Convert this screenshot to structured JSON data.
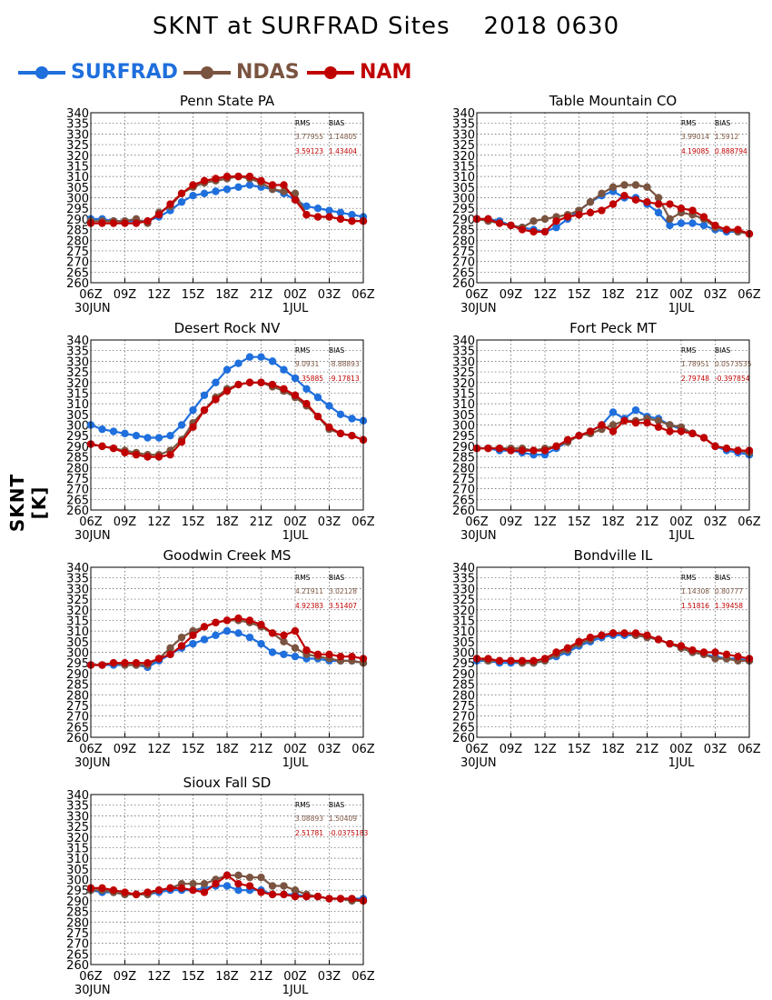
{
  "title": "SKNT at SURFRAD Sites    2018 0630",
  "ylabel": "SKNT [K]",
  "legend": [
    {
      "label": "SURFRAD",
      "color": "#1f6fdd"
    },
    {
      "label": "NDAS",
      "color": "#7a5440"
    },
    {
      "label": "NAM",
      "color": "#c00000"
    }
  ],
  "chart_data": [
    {
      "type": "line",
      "title": "Penn State PA",
      "x": [
        "06Z",
        "07Z",
        "08Z",
        "09Z",
        "10Z",
        "11Z",
        "12Z",
        "13Z",
        "14Z",
        "15Z",
        "16Z",
        "17Z",
        "18Z",
        "19Z",
        "20Z",
        "21Z",
        "22Z",
        "23Z",
        "00Z",
        "01Z",
        "02Z",
        "03Z",
        "04Z",
        "05Z",
        "06Z"
      ],
      "xticks": [
        "06Z",
        "09Z",
        "12Z",
        "15Z",
        "18Z",
        "21Z",
        "00Z",
        "03Z",
        "06Z"
      ],
      "date_labels": [
        "30JUN",
        "1JUL"
      ],
      "ylim": [
        260,
        340
      ],
      "yticks": [
        260,
        265,
        270,
        275,
        280,
        285,
        290,
        295,
        300,
        305,
        310,
        315,
        320,
        325,
        330,
        335,
        340
      ],
      "grid": true,
      "stats_headers": [
        "RMS",
        "BIAS"
      ],
      "stats": [
        {
          "rms": "3.77955",
          "bias": "1.14805"
        },
        {
          "rms": "3.59123",
          "bias": "1.43404"
        }
      ],
      "series": [
        {
          "name": "SURFRAD",
          "values": [
            290,
            290,
            289,
            289,
            289,
            289,
            291,
            294,
            298,
            301,
            302,
            303,
            304,
            305,
            306,
            305,
            304,
            302,
            299,
            296,
            295,
            294,
            293,
            292,
            291
          ]
        },
        {
          "name": "NDAS",
          "values": [
            289,
            289,
            289,
            289,
            290,
            288,
            293,
            296,
            302,
            305,
            307,
            308,
            309,
            310,
            309,
            307,
            304,
            303,
            302,
            292,
            291,
            291,
            290,
            289,
            289
          ]
        },
        {
          "name": "NAM",
          "values": [
            288,
            288,
            288,
            288,
            288,
            289,
            292,
            297,
            302,
            306,
            308,
            309,
            310,
            310,
            310,
            308,
            306,
            306,
            299,
            292,
            291,
            291,
            290,
            289,
            289
          ]
        }
      ]
    },
    {
      "type": "line",
      "title": "Table Mountain CO",
      "x": [
        "06Z",
        "07Z",
        "08Z",
        "09Z",
        "10Z",
        "11Z",
        "12Z",
        "13Z",
        "14Z",
        "15Z",
        "16Z",
        "17Z",
        "18Z",
        "19Z",
        "20Z",
        "21Z",
        "22Z",
        "23Z",
        "00Z",
        "01Z",
        "02Z",
        "03Z",
        "04Z",
        "05Z",
        "06Z"
      ],
      "xticks": [
        "06Z",
        "09Z",
        "12Z",
        "15Z",
        "18Z",
        "21Z",
        "00Z",
        "03Z",
        "06Z"
      ],
      "date_labels": [
        "30JUN",
        "1JUL"
      ],
      "ylim": [
        260,
        340
      ],
      "yticks": [
        260,
        265,
        270,
        275,
        280,
        285,
        290,
        295,
        300,
        305,
        310,
        315,
        320,
        325,
        330,
        335,
        340
      ],
      "grid": true,
      "stats_headers": [
        "RMS",
        "BIAS"
      ],
      "stats": [
        {
          "rms": "3.99014",
          "bias": "1.5912"
        },
        {
          "rms": "4.19085",
          "bias": "0.888794"
        }
      ],
      "series": [
        {
          "name": "SURFRAD",
          "values": [
            290,
            290,
            289,
            287,
            286,
            285,
            284,
            286,
            290,
            294,
            298,
            301,
            303,
            300,
            300,
            297,
            293,
            287,
            288,
            288,
            287,
            285,
            284,
            284,
            283
          ]
        },
        {
          "name": "NDAS",
          "values": [
            290,
            289,
            288,
            287,
            286,
            289,
            290,
            291,
            292,
            294,
            298,
            302,
            305,
            306,
            306,
            305,
            300,
            290,
            293,
            292,
            290,
            286,
            285,
            284,
            283
          ]
        },
        {
          "name": "NAM",
          "values": [
            290,
            290,
            288,
            287,
            285,
            284,
            284,
            289,
            291,
            292,
            293,
            294,
            297,
            301,
            299,
            298,
            297,
            297,
            295,
            294,
            291,
            287,
            285,
            285,
            283
          ]
        }
      ]
    },
    {
      "type": "line",
      "title": "Desert Rock NV",
      "x": [
        "06Z",
        "07Z",
        "08Z",
        "09Z",
        "10Z",
        "11Z",
        "12Z",
        "13Z",
        "14Z",
        "15Z",
        "16Z",
        "17Z",
        "18Z",
        "19Z",
        "20Z",
        "21Z",
        "22Z",
        "23Z",
        "00Z",
        "01Z",
        "02Z",
        "03Z",
        "04Z",
        "05Z",
        "06Z"
      ],
      "xticks": [
        "06Z",
        "09Z",
        "12Z",
        "15Z",
        "18Z",
        "21Z",
        "00Z",
        "03Z",
        "06Z"
      ],
      "date_labels": [
        "30JUN",
        "1JUL"
      ],
      "ylim": [
        260,
        340
      ],
      "yticks": [
        260,
        265,
        270,
        275,
        280,
        285,
        290,
        295,
        300,
        305,
        310,
        315,
        320,
        325,
        330,
        335,
        340
      ],
      "grid": true,
      "stats_headers": [
        "RMS",
        "BIAS"
      ],
      "stats": [
        {
          "rms": "9.0931",
          "bias": "-8.88893"
        },
        {
          "rms": "9.35885",
          "bias": "-9.17813"
        }
      ],
      "series": [
        {
          "name": "SURFRAD",
          "values": [
            300,
            298,
            297,
            296,
            295,
            294,
            294,
            295,
            300,
            307,
            314,
            320,
            326,
            329,
            332,
            332,
            330,
            326,
            322,
            317,
            313,
            309,
            305,
            303,
            302
          ]
        },
        {
          "name": "NDAS",
          "values": [
            291,
            290,
            289,
            288,
            287,
            286,
            286,
            288,
            293,
            301,
            307,
            313,
            317,
            319,
            320,
            320,
            318,
            316,
            313,
            309,
            304,
            298,
            296,
            295,
            293
          ]
        },
        {
          "name": "NAM",
          "values": [
            291,
            290,
            289,
            287,
            286,
            285,
            285,
            286,
            292,
            299,
            307,
            312,
            316,
            319,
            320,
            320,
            319,
            317,
            314,
            310,
            304,
            299,
            296,
            295,
            293
          ]
        }
      ]
    },
    {
      "type": "line",
      "title": "Fort Peck MT",
      "x": [
        "06Z",
        "07Z",
        "08Z",
        "09Z",
        "10Z",
        "11Z",
        "12Z",
        "13Z",
        "14Z",
        "15Z",
        "16Z",
        "17Z",
        "18Z",
        "19Z",
        "20Z",
        "21Z",
        "22Z",
        "23Z",
        "00Z",
        "01Z",
        "02Z",
        "03Z",
        "04Z",
        "05Z",
        "06Z"
      ],
      "xticks": [
        "06Z",
        "09Z",
        "12Z",
        "15Z",
        "18Z",
        "21Z",
        "00Z",
        "03Z",
        "06Z"
      ],
      "date_labels": [
        "30JUN",
        "1JUL"
      ],
      "ylim": [
        260,
        340
      ],
      "yticks": [
        260,
        265,
        270,
        275,
        280,
        285,
        290,
        295,
        300,
        305,
        310,
        315,
        320,
        325,
        330,
        335,
        340
      ],
      "grid": true,
      "stats_headers": [
        "RMS",
        "BIAS"
      ],
      "stats": [
        {
          "rms": "1.78951",
          "bias": "0.0573535"
        },
        {
          "rms": "2.79748",
          "bias": "-0.397854"
        }
      ],
      "series": [
        {
          "name": "SURFRAD",
          "values": [
            289,
            289,
            288,
            288,
            287,
            286,
            286,
            289,
            292,
            295,
            297,
            300,
            306,
            303,
            307,
            304,
            303,
            300,
            298,
            296,
            294,
            290,
            288,
            287,
            286
          ]
        },
        {
          "name": "NDAS",
          "values": [
            289,
            289,
            289,
            289,
            289,
            288,
            289,
            290,
            292,
            295,
            296,
            298,
            300,
            302,
            302,
            303,
            302,
            300,
            299,
            296,
            294,
            290,
            289,
            288,
            287
          ]
        },
        {
          "name": "NAM",
          "values": [
            289,
            289,
            289,
            288,
            288,
            288,
            288,
            290,
            293,
            295,
            297,
            300,
            297,
            302,
            301,
            301,
            299,
            297,
            297,
            296,
            294,
            290,
            289,
            288,
            288
          ]
        }
      ]
    },
    {
      "type": "line",
      "title": "Goodwin Creek MS",
      "x": [
        "06Z",
        "07Z",
        "08Z",
        "09Z",
        "10Z",
        "11Z",
        "12Z",
        "13Z",
        "14Z",
        "15Z",
        "16Z",
        "17Z",
        "18Z",
        "19Z",
        "20Z",
        "21Z",
        "22Z",
        "23Z",
        "00Z",
        "01Z",
        "02Z",
        "03Z",
        "04Z",
        "05Z",
        "06Z"
      ],
      "xticks": [
        "06Z",
        "09Z",
        "12Z",
        "15Z",
        "18Z",
        "21Z",
        "00Z",
        "03Z",
        "06Z"
      ],
      "date_labels": [
        "30JUN",
        "1JUL"
      ],
      "ylim": [
        260,
        340
      ],
      "yticks": [
        260,
        265,
        270,
        275,
        280,
        285,
        290,
        295,
        300,
        305,
        310,
        315,
        320,
        325,
        330,
        335,
        340
      ],
      "grid": true,
      "stats_headers": [
        "RMS",
        "BIAS"
      ],
      "stats": [
        {
          "rms": "4.21911",
          "bias": "3.02128"
        },
        {
          "rms": "4.92383",
          "bias": "3.51407"
        }
      ],
      "series": [
        {
          "name": "SURFRAD",
          "values": [
            294,
            294,
            294,
            294,
            294,
            293,
            296,
            299,
            302,
            304,
            306,
            308,
            310,
            309,
            307,
            304,
            300,
            299,
            298,
            297,
            297,
            296,
            296,
            296,
            295
          ]
        },
        {
          "name": "NDAS",
          "values": [
            294,
            294,
            295,
            294,
            294,
            294,
            297,
            302,
            307,
            310,
            312,
            314,
            315,
            315,
            314,
            312,
            309,
            305,
            302,
            299,
            298,
            297,
            296,
            296,
            295
          ]
        },
        {
          "name": "NAM",
          "values": [
            294,
            294,
            295,
            295,
            295,
            295,
            297,
            299,
            303,
            308,
            312,
            314,
            315,
            316,
            315,
            313,
            309,
            308,
            310,
            301,
            299,
            299,
            298,
            298,
            297
          ]
        }
      ]
    },
    {
      "type": "line",
      "title": "Bondville IL",
      "x": [
        "06Z",
        "07Z",
        "08Z",
        "09Z",
        "10Z",
        "11Z",
        "12Z",
        "13Z",
        "14Z",
        "15Z",
        "16Z",
        "17Z",
        "18Z",
        "19Z",
        "20Z",
        "21Z",
        "22Z",
        "23Z",
        "00Z",
        "01Z",
        "02Z",
        "03Z",
        "04Z",
        "05Z",
        "06Z"
      ],
      "xticks": [
        "06Z",
        "09Z",
        "12Z",
        "15Z",
        "18Z",
        "21Z",
        "00Z",
        "03Z",
        "06Z"
      ],
      "date_labels": [
        "30JUN",
        "1JUL"
      ],
      "ylim": [
        260,
        340
      ],
      "yticks": [
        260,
        265,
        270,
        275,
        280,
        285,
        290,
        295,
        300,
        305,
        310,
        315,
        320,
        325,
        330,
        335,
        340
      ],
      "grid": true,
      "stats_headers": [
        "RMS",
        "BIAS"
      ],
      "stats": [
        {
          "rms": "1.14308",
          "bias": "0.80777"
        },
        {
          "rms": "1.51816",
          "bias": "1.39458"
        }
      ],
      "series": [
        {
          "name": "SURFRAD",
          "values": [
            296,
            296,
            295,
            295,
            295,
            295,
            296,
            298,
            300,
            303,
            305,
            307,
            308,
            308,
            308,
            307,
            306,
            304,
            302,
            300,
            299,
            298,
            297,
            297,
            296
          ]
        },
        {
          "name": "NDAS",
          "values": [
            297,
            296,
            296,
            296,
            295,
            295,
            296,
            299,
            301,
            304,
            306,
            308,
            309,
            309,
            308,
            307,
            306,
            304,
            302,
            300,
            299,
            297,
            297,
            296,
            296
          ]
        },
        {
          "name": "NAM",
          "values": [
            297,
            297,
            296,
            296,
            296,
            296,
            297,
            300,
            302,
            305,
            307,
            308,
            309,
            309,
            309,
            308,
            306,
            304,
            303,
            301,
            300,
            300,
            299,
            298,
            297
          ]
        }
      ]
    },
    {
      "type": "line",
      "title": "Sioux Fall SD",
      "x": [
        "06Z",
        "07Z",
        "08Z",
        "09Z",
        "10Z",
        "11Z",
        "12Z",
        "13Z",
        "14Z",
        "15Z",
        "16Z",
        "17Z",
        "18Z",
        "19Z",
        "20Z",
        "21Z",
        "22Z",
        "23Z",
        "00Z",
        "01Z",
        "02Z",
        "03Z",
        "04Z",
        "05Z",
        "06Z"
      ],
      "xticks": [
        "06Z",
        "09Z",
        "12Z",
        "15Z",
        "18Z",
        "21Z",
        "00Z",
        "03Z",
        "06Z"
      ],
      "date_labels": [
        "30JUN",
        "1JUL"
      ],
      "ylim": [
        260,
        340
      ],
      "yticks": [
        260,
        265,
        270,
        275,
        280,
        285,
        290,
        295,
        300,
        305,
        310,
        315,
        320,
        325,
        330,
        335,
        340
      ],
      "grid": true,
      "stats_headers": [
        "RMS",
        "BIAS"
      ],
      "stats": [
        {
          "rms": "3.08893",
          "bias": "1.50409"
        },
        {
          "rms": "2.51781",
          "bias": "-0.0375183"
        }
      ],
      "series": [
        {
          "name": "SURFRAD",
          "values": [
            295,
            294,
            294,
            293,
            293,
            293,
            294,
            295,
            295,
            295,
            296,
            297,
            297,
            295,
            295,
            295,
            293,
            293,
            293,
            292,
            292,
            291,
            291,
            291,
            291
          ]
        },
        {
          "name": "NDAS",
          "values": [
            295,
            295,
            294,
            293,
            293,
            293,
            295,
            296,
            298,
            298,
            298,
            300,
            302,
            302,
            301,
            301,
            297,
            297,
            295,
            293,
            292,
            291,
            291,
            290,
            290
          ]
        },
        {
          "name": "NAM",
          "values": [
            296,
            296,
            295,
            294,
            293,
            294,
            295,
            296,
            296,
            295,
            294,
            298,
            302,
            298,
            297,
            294,
            293,
            293,
            292,
            292,
            292,
            291,
            291,
            291,
            290
          ]
        }
      ]
    }
  ]
}
